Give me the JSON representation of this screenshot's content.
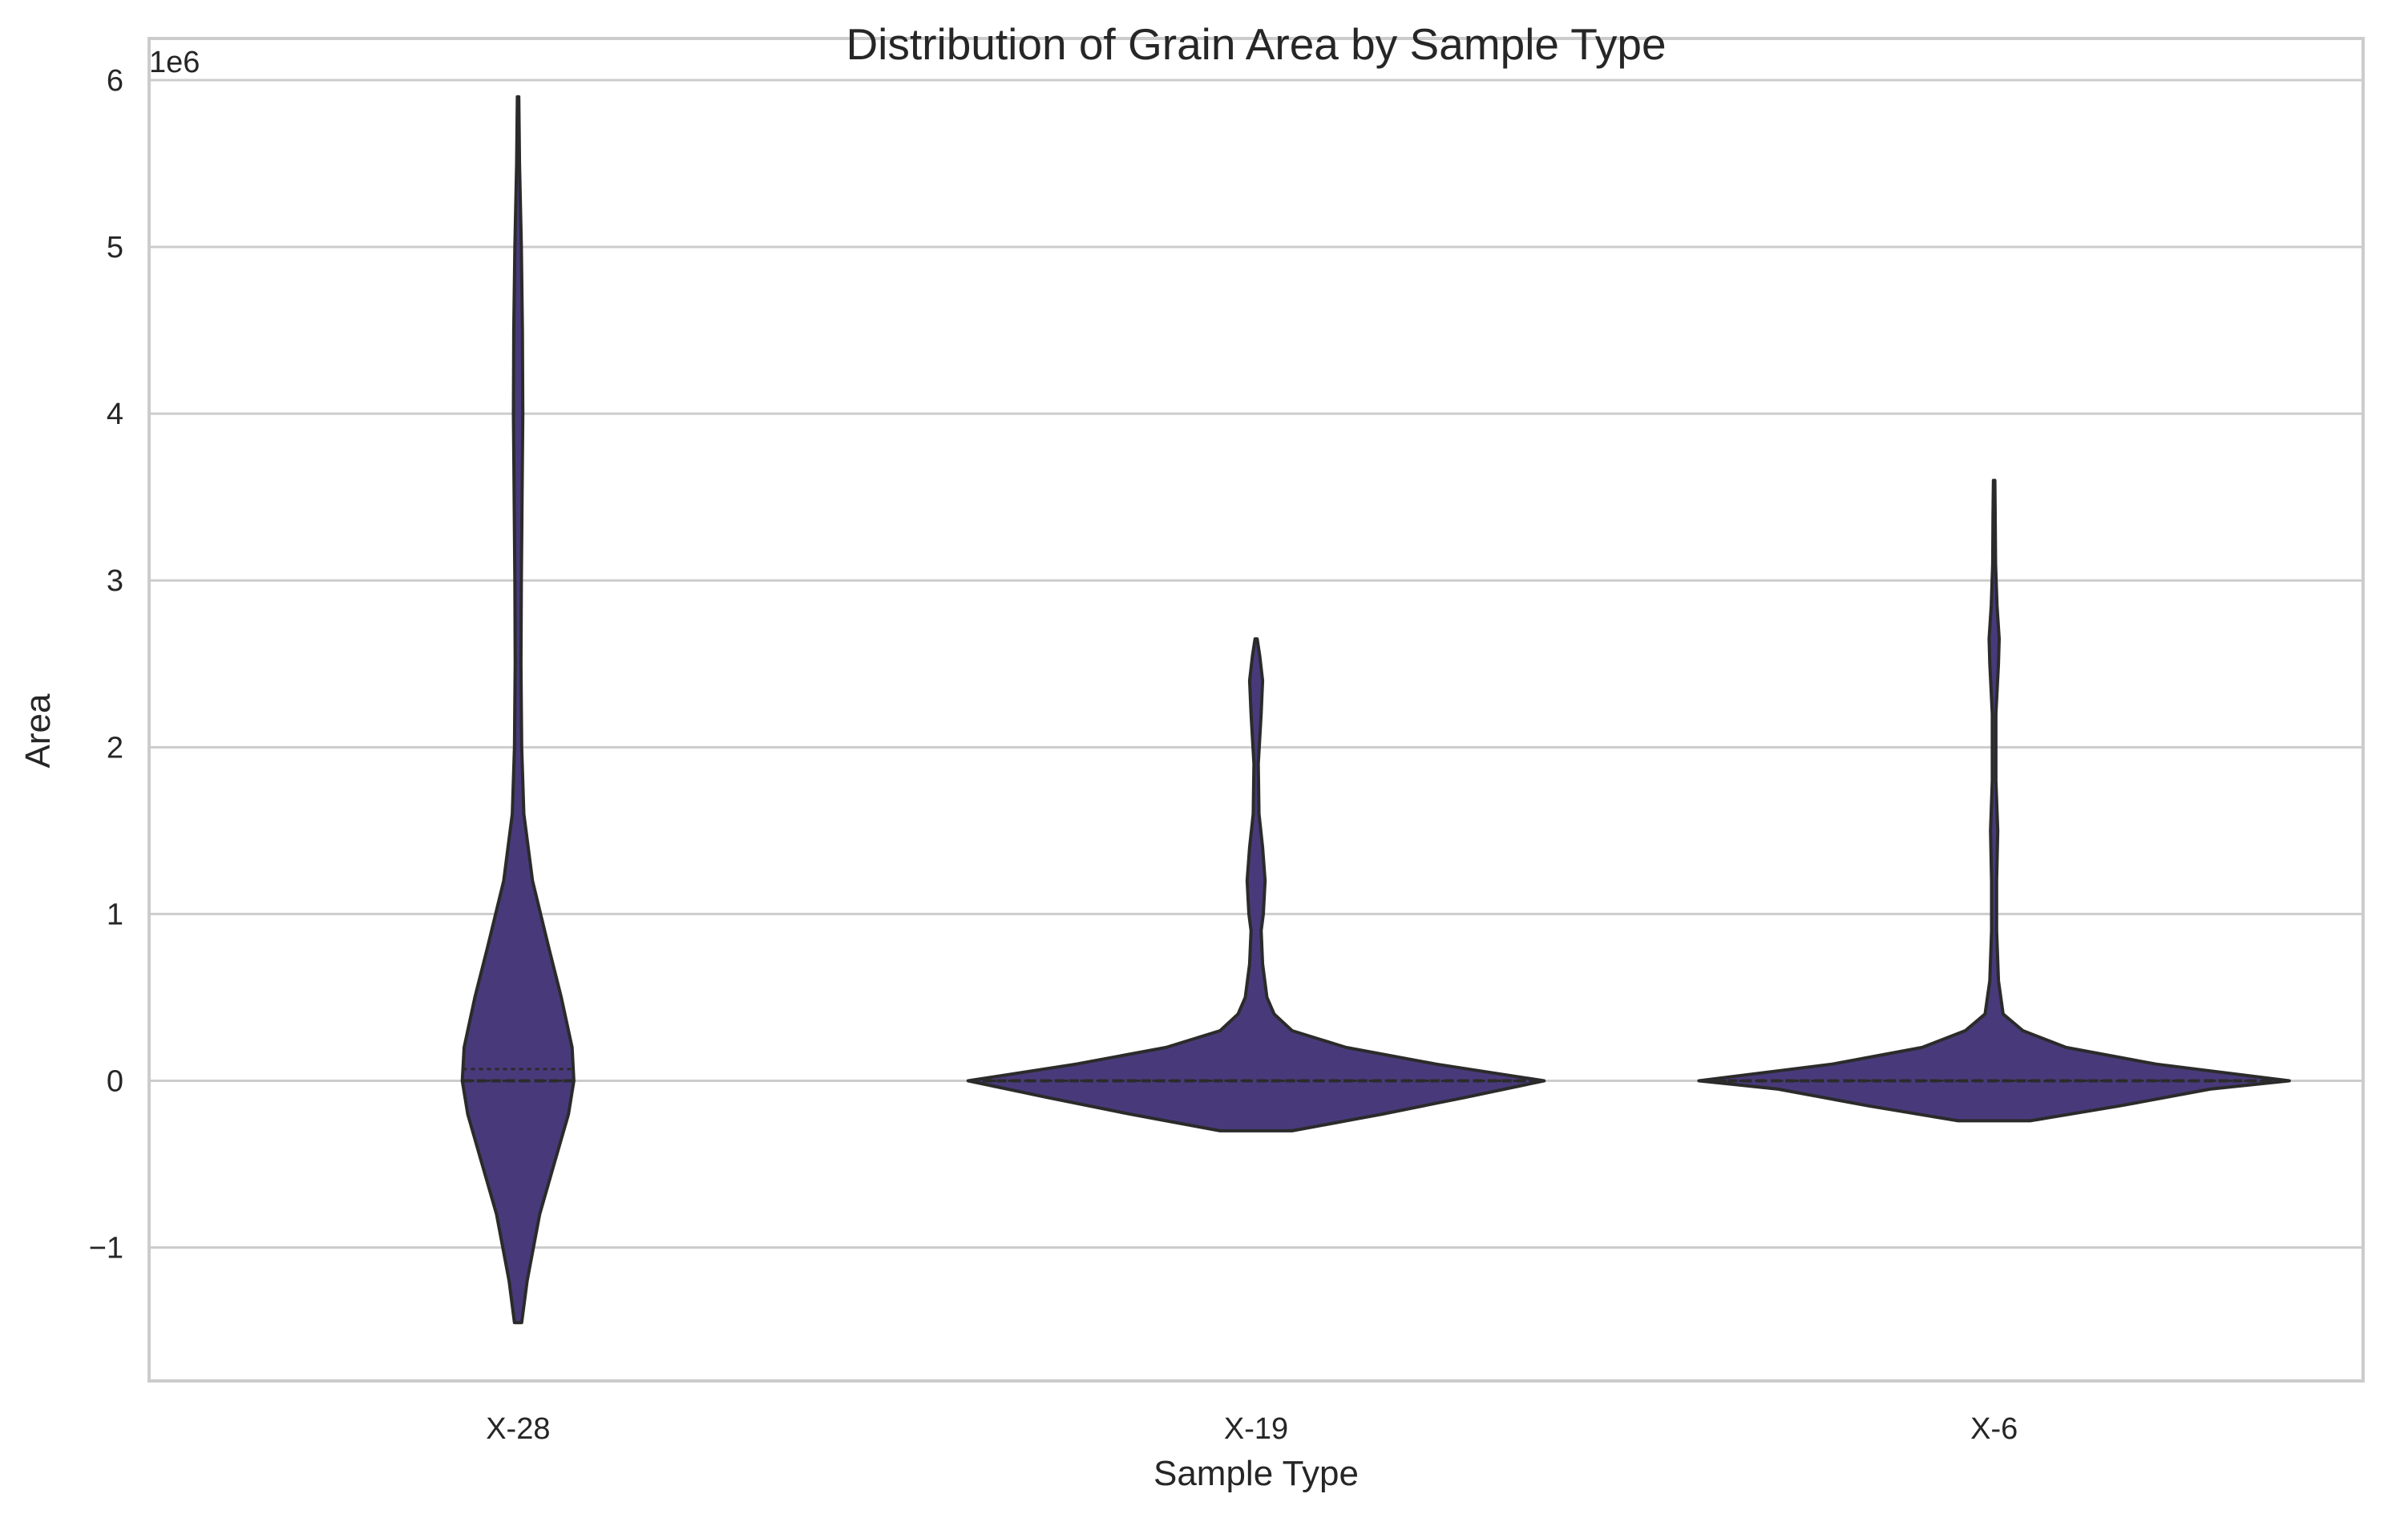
{
  "chart_data": {
    "type": "violin",
    "title": "Distribution of Grain Area by Sample Type",
    "xlabel": "Sample Type",
    "ylabel": "Area",
    "y_offset_text": "1e6",
    "y_scale_multiplier": 1000000,
    "ylim": [
      -1.8,
      6.25
    ],
    "yticks": [
      -1,
      0,
      1,
      2,
      3,
      4,
      5,
      6
    ],
    "ytick_labels": [
      "−1",
      "0",
      "1",
      "2",
      "3",
      "4",
      "5",
      "6"
    ],
    "grid": true,
    "legend": "none",
    "colors": {
      "violin_fill": "#483a7a",
      "violin_edge": "#2b2b2b",
      "grid": "#cccccc",
      "frame": "#cccccc",
      "text": "#262626"
    },
    "categories": [
      "X-28",
      "X-19",
      "X-6"
    ],
    "violins": [
      {
        "category": "X-28",
        "min": -1.45,
        "max": 5.9,
        "quartiles": [
          0.0,
          0.0,
          0.07
        ],
        "profile": [
          [
            -1.45,
            0.01
          ],
          [
            -1.2,
            0.025
          ],
          [
            -0.8,
            0.06
          ],
          [
            -0.5,
            0.1
          ],
          [
            -0.2,
            0.14
          ],
          [
            0.0,
            0.155
          ],
          [
            0.2,
            0.15
          ],
          [
            0.5,
            0.12
          ],
          [
            0.8,
            0.085
          ],
          [
            1.2,
            0.04
          ],
          [
            1.6,
            0.016
          ],
          [
            2.0,
            0.01
          ],
          [
            2.5,
            0.008
          ],
          [
            3.0,
            0.009
          ],
          [
            3.5,
            0.011
          ],
          [
            4.0,
            0.013
          ],
          [
            4.5,
            0.012
          ],
          [
            5.0,
            0.009
          ],
          [
            5.5,
            0.004
          ],
          [
            5.9,
            0.002
          ]
        ]
      },
      {
        "category": "X-19",
        "min": -0.3,
        "max": 2.65,
        "quartiles": [
          0.0,
          0.0,
          0.0
        ],
        "profile": [
          [
            -0.3,
            0.1
          ],
          [
            -0.2,
            0.35
          ],
          [
            -0.1,
            0.58
          ],
          [
            0.0,
            0.8
          ],
          [
            0.1,
            0.5
          ],
          [
            0.2,
            0.25
          ],
          [
            0.3,
            0.1
          ],
          [
            0.4,
            0.05
          ],
          [
            0.5,
            0.03
          ],
          [
            0.7,
            0.018
          ],
          [
            0.9,
            0.014
          ],
          [
            1.0,
            0.02
          ],
          [
            1.2,
            0.025
          ],
          [
            1.4,
            0.018
          ],
          [
            1.6,
            0.008
          ],
          [
            1.9,
            0.006
          ],
          [
            2.2,
            0.014
          ],
          [
            2.4,
            0.018
          ],
          [
            2.55,
            0.01
          ],
          [
            2.65,
            0.003
          ]
        ]
      },
      {
        "category": "X-6",
        "min": -0.24,
        "max": 3.6,
        "quartiles": [
          0.0,
          0.0,
          0.0
        ],
        "profile": [
          [
            -0.24,
            0.1
          ],
          [
            -0.15,
            0.35
          ],
          [
            -0.05,
            0.6
          ],
          [
            0.0,
            0.82
          ],
          [
            0.1,
            0.45
          ],
          [
            0.2,
            0.2
          ],
          [
            0.3,
            0.08
          ],
          [
            0.4,
            0.025
          ],
          [
            0.6,
            0.012
          ],
          [
            0.9,
            0.007
          ],
          [
            1.2,
            0.007
          ],
          [
            1.5,
            0.01
          ],
          [
            1.8,
            0.005
          ],
          [
            2.2,
            0.005
          ],
          [
            2.5,
            0.012
          ],
          [
            2.65,
            0.014
          ],
          [
            2.85,
            0.008
          ],
          [
            3.1,
            0.004
          ],
          [
            3.4,
            0.003
          ],
          [
            3.6,
            0.002
          ]
        ]
      }
    ]
  }
}
